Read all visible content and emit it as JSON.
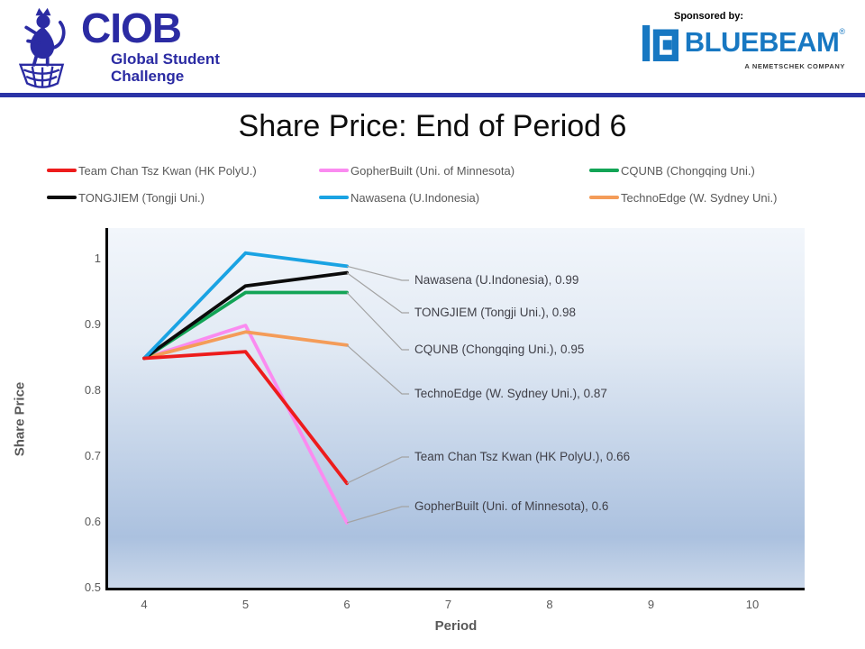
{
  "header": {
    "ciob": {
      "brand": "CIOB",
      "subtitle": [
        "Global Student",
        "Challenge"
      ]
    },
    "sponsor": {
      "label": "Sponsored by:",
      "brand": "BLUEBEAM",
      "mark": "®",
      "tagline": "A NEMETSCHEK COMPANY"
    }
  },
  "colors": {
    "ciob_blue": "#2b2ba3",
    "divider_blue": "#2b34a6",
    "bluebeam_blue": "#1878c2",
    "axis_text": "#595959",
    "callout_text": "#3f3f47",
    "leader": "#a3a3a3"
  },
  "chart_data": {
    "type": "line",
    "title": "Share Price: End of Period 6",
    "xlabel": "Period",
    "ylabel": "Share Price",
    "x": [
      4,
      5,
      6
    ],
    "x_ticks": [
      4,
      5,
      6,
      7,
      8,
      9,
      10
    ],
    "y_ticks": [
      1,
      0.9,
      0.8,
      0.7,
      0.6,
      0.5
    ],
    "xlim": [
      3.6,
      10.5
    ],
    "ylim": [
      0.5,
      1.045
    ],
    "grid": false,
    "legend_position": "top",
    "plot_bg_gradient": [
      "#f2f6fb",
      "#e2eaf4",
      "#abc1df",
      "#cbd8ea"
    ],
    "series": [
      {
        "name": "Team Chan Tsz Kwan (HK PolyU.)",
        "color": "#ed1c1c",
        "values": [
          0.85,
          0.86,
          0.66
        ]
      },
      {
        "name": "GopherBuilt (Uni. of Minnesota)",
        "color": "#fa8bf0",
        "values": [
          0.85,
          0.9,
          0.6
        ]
      },
      {
        "name": "CQUNB (Chongqing Uni.)",
        "color": "#12a456",
        "values": [
          0.85,
          0.95,
          0.95
        ]
      },
      {
        "name": "TONGJIEM (Tongji Uni.)",
        "color": "#0b0b0b",
        "values": [
          0.85,
          0.96,
          0.98
        ]
      },
      {
        "name": "Nawasena (U.Indonesia)",
        "color": "#1aa3e3",
        "values": [
          0.85,
          1.01,
          0.99
        ]
      },
      {
        "name": "TechnoEdge (W. Sydney Uni.)",
        "color": "#f49c59",
        "values": [
          0.85,
          0.89,
          0.87
        ]
      }
    ],
    "annotations": [
      {
        "label": "Nawasena (U.Indonesia), 0.99",
        "series": "Nawasena (U.Indonesia)",
        "x": 6,
        "value": 0.99
      },
      {
        "label": "TONGJIEM (Tongji Uni.), 0.98",
        "series": "TONGJIEM (Tongji Uni.)",
        "x": 6,
        "value": 0.98
      },
      {
        "label": "CQUNB (Chongqing Uni.), 0.95",
        "series": "CQUNB (Chongqing Uni.)",
        "x": 6,
        "value": 0.95
      },
      {
        "label": "TechnoEdge (W. Sydney Uni.), 0.87",
        "series": "TechnoEdge (W. Sydney Uni.)",
        "x": 6,
        "value": 0.87
      },
      {
        "label": "Team Chan Tsz Kwan (HK PolyU.), 0.66",
        "series": "Team Chan Tsz Kwan (HK PolyU.)",
        "x": 6,
        "value": 0.66
      },
      {
        "label": "GopherBuilt (Uni. of Minnesota), 0.6",
        "series": "GopherBuilt (Uni. of Minnesota)",
        "x": 6,
        "value": 0.6
      }
    ]
  }
}
